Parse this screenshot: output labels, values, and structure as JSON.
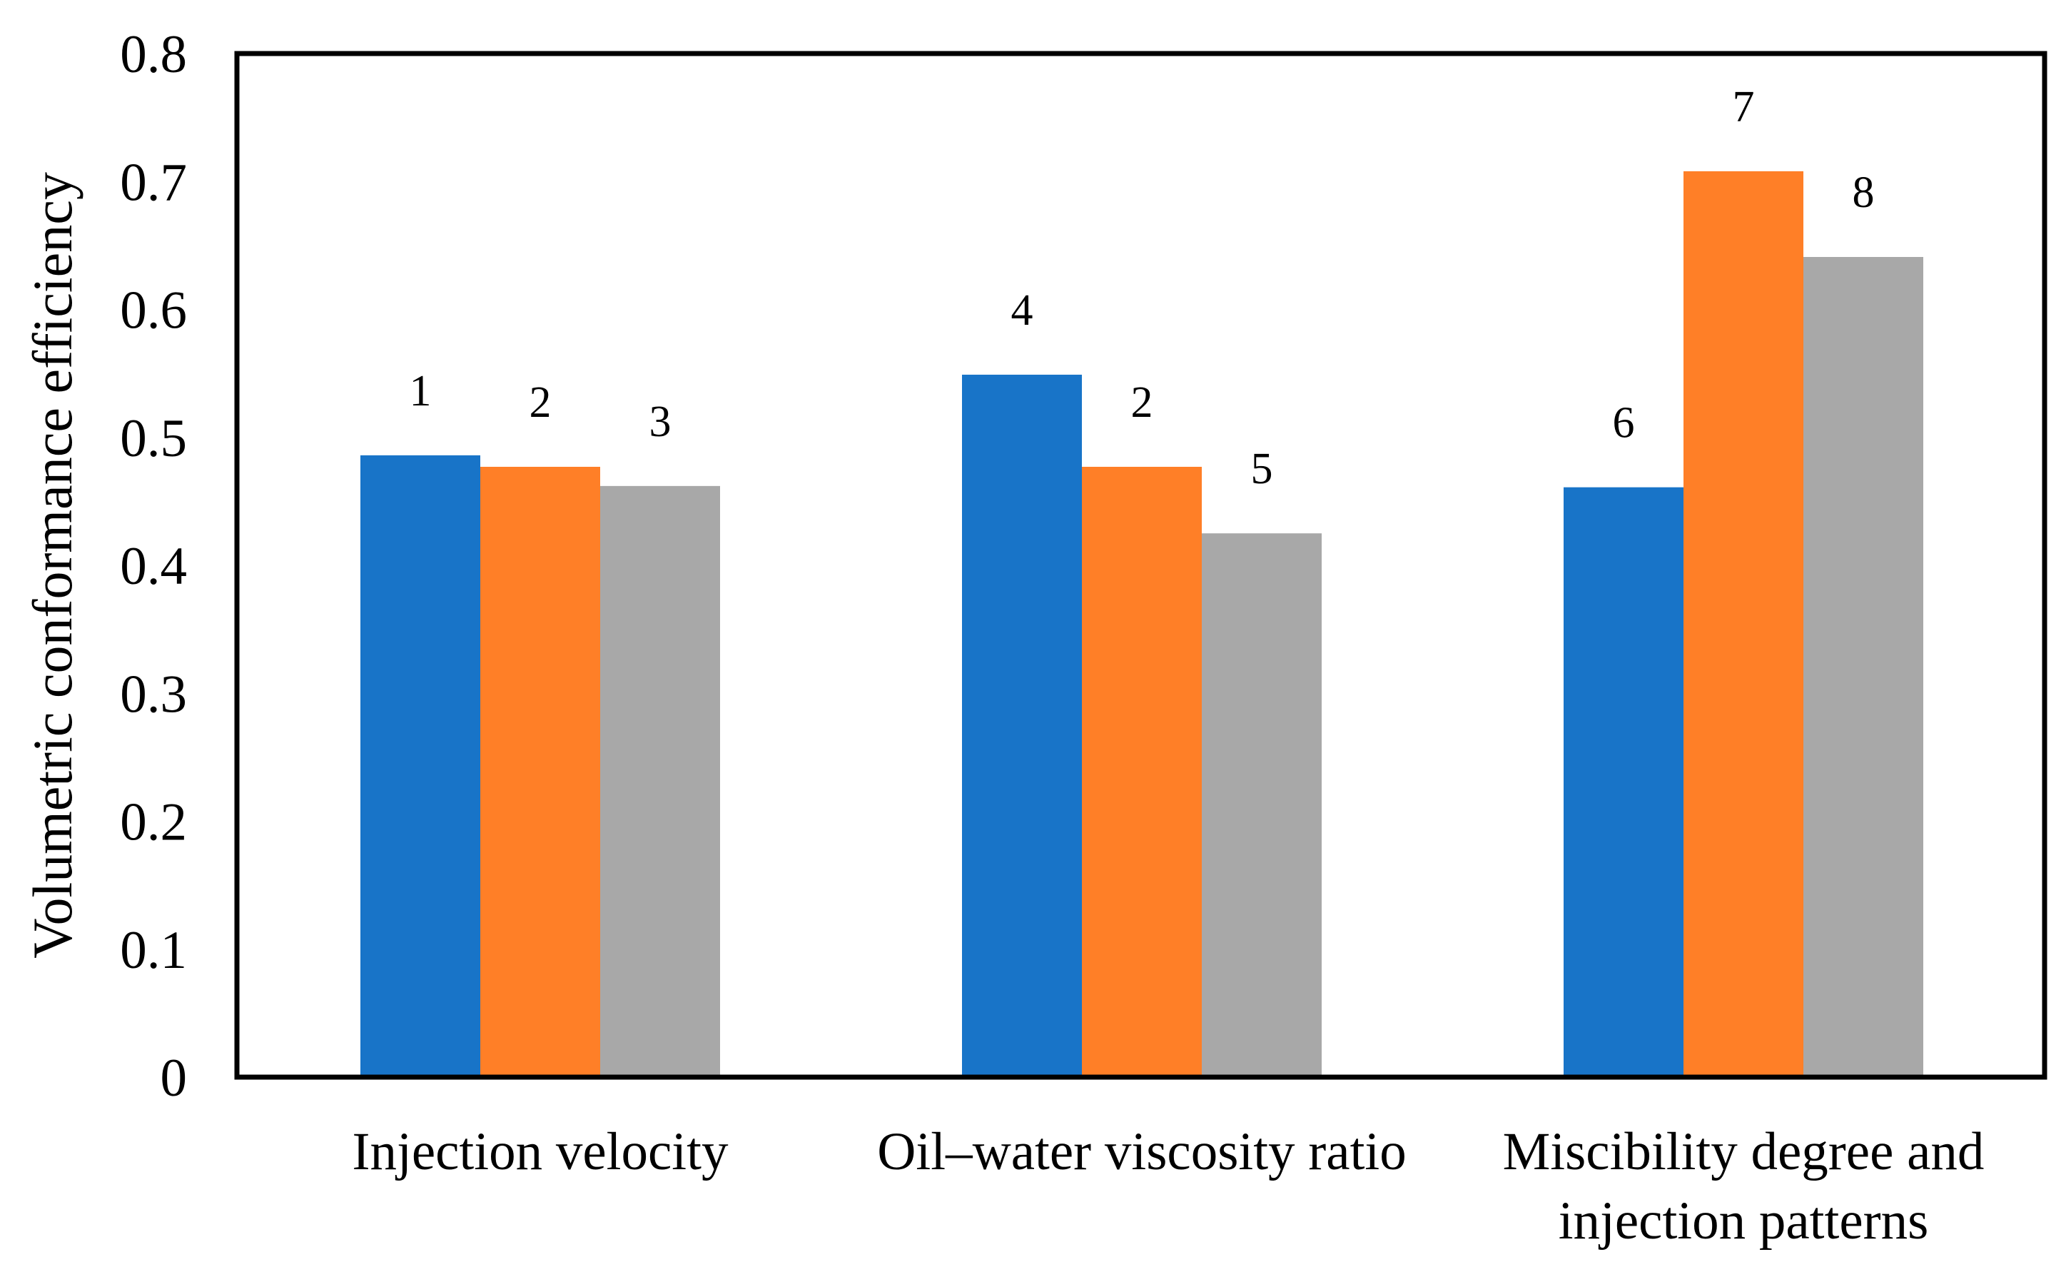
{
  "chart_data": {
    "type": "bar",
    "title": "",
    "xlabel": "",
    "ylabel": "Volumetric conformance efficiency",
    "ylim": [
      0,
      0.8
    ],
    "yticks": [
      "0",
      "0.1",
      "0.2",
      "0.3",
      "0.4",
      "0.5",
      "0.6",
      "0.7",
      "0.8"
    ],
    "grid": false,
    "legend": "none",
    "categories": [
      [
        "Injection velocity"
      ],
      [
        "Oil–water viscosity ratio"
      ],
      [
        "Miscibility degree and",
        "injection patterns"
      ]
    ],
    "series_colors": [
      "#1874C8",
      "#FF7F27",
      "#A8A8A8"
    ],
    "bars": [
      [
        {
          "value": 0.486,
          "label": "1"
        },
        {
          "value": 0.477,
          "label": "2"
        },
        {
          "value": 0.462,
          "label": "3"
        }
      ],
      [
        {
          "value": 0.549,
          "label": "4"
        },
        {
          "value": 0.477,
          "label": "2"
        },
        {
          "value": 0.425,
          "label": "5"
        }
      ],
      [
        {
          "value": 0.461,
          "label": "6"
        },
        {
          "value": 0.708,
          "label": "7"
        },
        {
          "value": 0.641,
          "label": "8"
        }
      ]
    ]
  }
}
